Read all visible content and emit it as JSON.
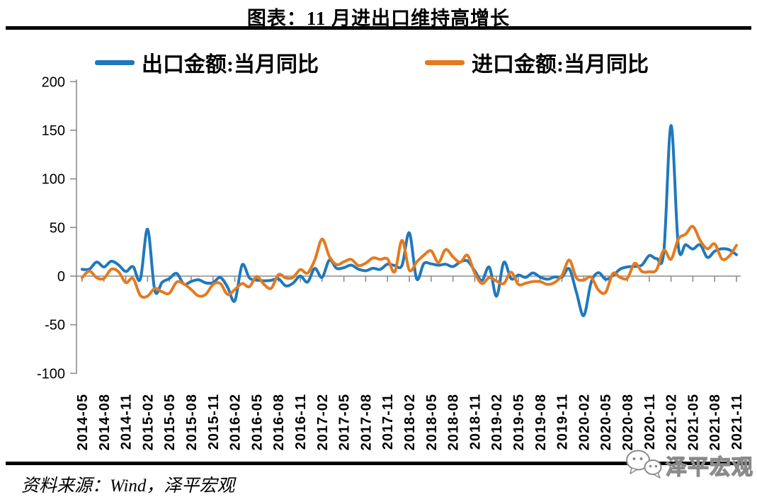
{
  "title": "图表：11 月进出口维持高增长",
  "legend": [
    {
      "label": "出口金额:当月同比",
      "color": "#1F78BE"
    },
    {
      "label": "进口金额:当月同比",
      "color": "#E47A1F"
    }
  ],
  "source_note": "资料来源：Wind，泽平宏观",
  "watermark": {
    "brand": "泽平宏观",
    "icon": "wechat-bubbles-icon"
  },
  "chart_data": {
    "type": "line",
    "title": "图表：11 月进出口维持高增长",
    "xlabel": "",
    "ylabel": "",
    "ylim": [
      -100,
      200
    ],
    "yticks": [
      200,
      150,
      100,
      50,
      0,
      -50,
      -100
    ],
    "x_tick_every": 3,
    "grid": false,
    "zero_axis": true,
    "axis_color": "#8C8C8C",
    "legend_position": "top",
    "x": [
      "2014-05",
      "2014-06",
      "2014-07",
      "2014-08",
      "2014-09",
      "2014-10",
      "2014-11",
      "2014-12",
      "2015-01",
      "2015-02",
      "2015-03",
      "2015-04",
      "2015-05",
      "2015-06",
      "2015-07",
      "2015-08",
      "2015-09",
      "2015-10",
      "2015-11",
      "2015-12",
      "2016-01",
      "2016-02",
      "2016-03",
      "2016-04",
      "2016-05",
      "2016-06",
      "2016-07",
      "2016-08",
      "2016-09",
      "2016-10",
      "2016-11",
      "2016-12",
      "2017-01",
      "2017-02",
      "2017-03",
      "2017-04",
      "2017-05",
      "2017-06",
      "2017-07",
      "2017-08",
      "2017-09",
      "2017-10",
      "2017-11",
      "2017-12",
      "2018-01",
      "2018-02",
      "2018-03",
      "2018-04",
      "2018-05",
      "2018-06",
      "2018-07",
      "2018-08",
      "2018-09",
      "2018-10",
      "2018-11",
      "2018-12",
      "2019-01",
      "2019-02",
      "2019-03",
      "2019-04",
      "2019-05",
      "2019-06",
      "2019-07",
      "2019-08",
      "2019-09",
      "2019-10",
      "2019-11",
      "2019-12",
      "2020-01",
      "2020-02",
      "2020-03",
      "2020-04",
      "2020-05",
      "2020-06",
      "2020-07",
      "2020-08",
      "2020-09",
      "2020-10",
      "2020-11",
      "2020-12",
      "2021-01",
      "2021-02",
      "2021-03",
      "2021-04",
      "2021-05",
      "2021-06",
      "2021-07",
      "2021-08",
      "2021-09",
      "2021-10",
      "2021-11"
    ],
    "series": [
      {
        "name": "出口金额:当月同比",
        "color": "#1F78BE",
        "values": [
          7.0,
          7.2,
          14.5,
          9.4,
          15.3,
          11.6,
          4.7,
          9.7,
          -3.3,
          48.3,
          -15.0,
          -6.4,
          -2.5,
          2.8,
          -8.3,
          -5.5,
          -3.7,
          -6.9,
          -6.8,
          -1.4,
          -11.2,
          -25.4,
          11.5,
          -1.8,
          -4.1,
          -4.8,
          -4.4,
          -2.8,
          -10.0,
          -7.3,
          0.1,
          -6.1,
          7.9,
          -1.3,
          16.4,
          8.0,
          8.7,
          11.3,
          7.2,
          5.5,
          8.1,
          6.9,
          12.3,
          10.9,
          11.1,
          44.5,
          -2.7,
          12.9,
          12.6,
          11.2,
          12.2,
          9.8,
          14.5,
          15.6,
          5.4,
          -4.4,
          9.1,
          -20.7,
          14.2,
          -2.7,
          1.1,
          -1.3,
          3.3,
          -1.0,
          -3.2,
          -0.9,
          -1.1,
          7.6,
          -17.2,
          -40.6,
          -6.6,
          3.5,
          -3.3,
          0.5,
          7.2,
          9.5,
          9.9,
          11.4,
          21.1,
          18.1,
          24.8,
          154.9,
          30.6,
          32.3,
          27.9,
          32.2,
          19.3,
          25.6,
          28.1,
          27.1,
          22.0
        ]
      },
      {
        "name": "进口金额:当月同比",
        "color": "#E47A1F",
        "values": [
          -1.6,
          5.2,
          -1.6,
          -2.4,
          7.0,
          4.6,
          -6.7,
          -2.4,
          -19.9,
          -20.5,
          -12.7,
          -16.2,
          -17.6,
          -6.1,
          -8.1,
          -13.8,
          -20.4,
          -18.8,
          -8.7,
          -7.6,
          -18.8,
          -13.8,
          -7.6,
          -10.9,
          -0.4,
          -8.4,
          -12.5,
          1.5,
          -1.9,
          -1.4,
          6.7,
          3.1,
          16.7,
          38.1,
          20.3,
          11.9,
          14.8,
          17.2,
          11.0,
          13.3,
          18.7,
          17.2,
          17.7,
          4.5,
          36.8,
          6.1,
          14.4,
          21.5,
          26.0,
          14.1,
          27.3,
          19.9,
          14.3,
          21.4,
          3.0,
          -7.6,
          -1.5,
          -5.2,
          -7.6,
          4.0,
          -8.5,
          -7.3,
          -5.6,
          -5.6,
          -8.5,
          -6.4,
          0.8,
          16.5,
          -2.0,
          -4.0,
          -1.0,
          -14.2,
          -16.7,
          2.7,
          -1.4,
          -2.1,
          13.2,
          4.7,
          4.5,
          6.5,
          26.6,
          17.3,
          38.1,
          43.1,
          51.1,
          36.7,
          28.1,
          33.1,
          17.6,
          20.6,
          31.7
        ]
      }
    ]
  }
}
